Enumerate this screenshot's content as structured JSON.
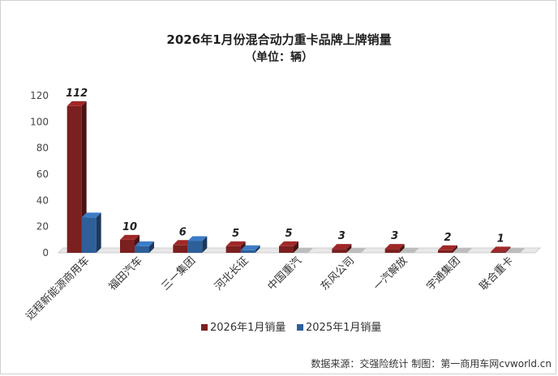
{
  "chart_data": {
    "type": "bar",
    "title": "2026年1月份混合动力重卡品牌上牌销量",
    "subtitle": "（单位：辆）",
    "categories": [
      "远程新能源商用车",
      "福田汽车",
      "三一集团",
      "河北长征",
      "中国重汽",
      "东风公司",
      "一汽解放",
      "宇通集团",
      "联合重卡"
    ],
    "series": [
      {
        "name": "2026年1月销量",
        "values": [
          112,
          10,
          6,
          5,
          5,
          3,
          3,
          2,
          1
        ],
        "color": "#7b1f1f"
      },
      {
        "name": "2025年1月销量",
        "values": [
          27,
          5,
          9,
          2,
          0,
          0,
          0,
          0,
          0
        ],
        "color": "#2e5f99"
      }
    ],
    "data_labels": [
      "112",
      "10",
      "6",
      "5",
      "5",
      "3",
      "3",
      "2",
      "1"
    ],
    "yticks": [
      "0",
      "20",
      "40",
      "60",
      "80",
      "100",
      "120"
    ],
    "ylim": [
      0,
      120
    ],
    "grid": false,
    "legend": "bottom"
  },
  "footer": {
    "source": "数据来源：交强险统计  制图：第一商用车网cvworld.cn"
  }
}
